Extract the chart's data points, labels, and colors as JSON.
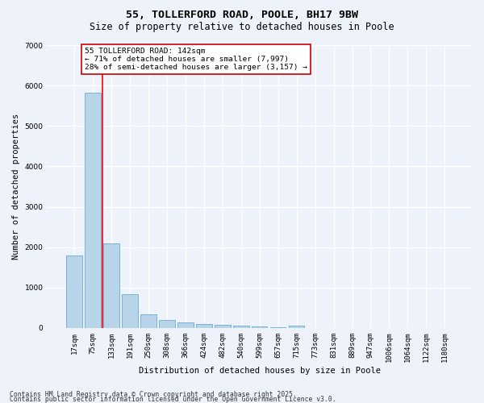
{
  "title1": "55, TOLLERFORD ROAD, POOLE, BH17 9BW",
  "title2": "Size of property relative to detached houses in Poole",
  "xlabel": "Distribution of detached houses by size in Poole",
  "ylabel": "Number of detached properties",
  "categories": [
    "17sqm",
    "75sqm",
    "133sqm",
    "191sqm",
    "250sqm",
    "308sqm",
    "366sqm",
    "424sqm",
    "482sqm",
    "540sqm",
    "599sqm",
    "657sqm",
    "715sqm",
    "773sqm",
    "831sqm",
    "889sqm",
    "947sqm",
    "1006sqm",
    "1064sqm",
    "1122sqm",
    "1180sqm"
  ],
  "values": [
    1800,
    5820,
    2090,
    830,
    340,
    195,
    130,
    95,
    70,
    50,
    38,
    28,
    50,
    0,
    0,
    0,
    0,
    0,
    0,
    0,
    0
  ],
  "bar_color": "#b8d4e8",
  "bar_edge_color": "#6aaad4",
  "red_line_index": 2,
  "annotation_text": "55 TOLLERFORD ROAD: 142sqm\n← 71% of detached houses are smaller (7,997)\n28% of semi-detached houses are larger (3,157) →",
  "annotation_box_color": "#ffffff",
  "annotation_box_edge_color": "#cc0000",
  "background_color": "#eef2fa",
  "grid_color": "#ffffff",
  "ylim": [
    0,
    7000
  ],
  "yticks": [
    0,
    1000,
    2000,
    3000,
    4000,
    5000,
    6000,
    7000
  ],
  "footer1": "Contains HM Land Registry data © Crown copyright and database right 2025.",
  "footer2": "Contains public sector information licensed under the Open Government Licence v3.0.",
  "title_fontsize": 9.5,
  "subtitle_fontsize": 8.5,
  "axis_fontsize": 7.5,
  "tick_fontsize": 6.5,
  "annotation_fontsize": 6.8,
  "footer_fontsize": 5.8
}
